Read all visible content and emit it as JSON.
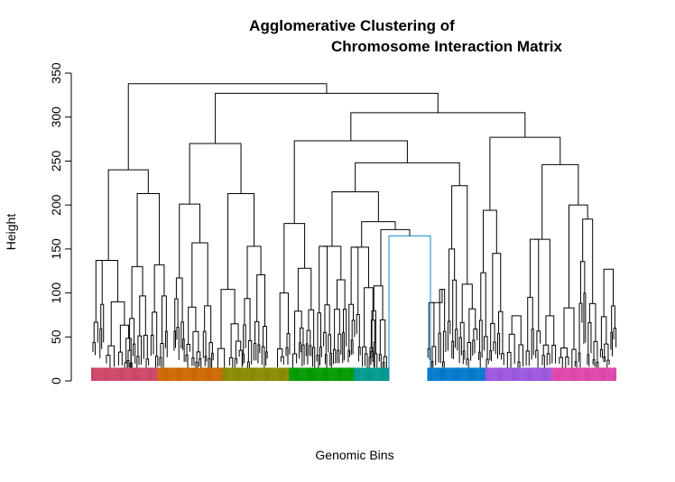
{
  "chart_data": {
    "type": "dendrogram",
    "title_line1": "Agglomerative Clustering of",
    "title_line2": "Chromosome Interaction Matrix",
    "xlabel": "Genomic Bins",
    "ylabel": "Height",
    "ylim": [
      0,
      350
    ],
    "yticks": [
      0,
      50,
      100,
      150,
      200,
      250,
      300,
      350
    ],
    "ytick_labels": [
      "0",
      "50",
      "100",
      "150",
      "200",
      "250",
      "300",
      "350"
    ],
    "leaf_count": 300,
    "leaf_base_height": 15,
    "leaf_colors": [
      "#cc4466",
      "#cc6600",
      "#888800",
      "#009900",
      "#00998e",
      "#0077cc",
      "#9955dd",
      "#dd44aa"
    ],
    "highlighted_branch_color": "#1188cc",
    "merges": [
      {
        "height": 338,
        "left": "A",
        "right": "B"
      },
      {
        "height": 240,
        "cluster": "A",
        "left": "A1",
        "right": "A2"
      },
      {
        "height": 327,
        "cluster": "B",
        "left": "B1",
        "right": "B2"
      },
      {
        "height": 270,
        "cluster": "B1",
        "left": "B1a",
        "right": "B1b"
      },
      {
        "height": 305,
        "cluster": "B2",
        "left": "B2a",
        "right": "B2b"
      },
      {
        "height": 273,
        "cluster": "B2a",
        "left": "C1",
        "right": "C2"
      },
      {
        "height": 248,
        "cluster": "C2",
        "left": "D1",
        "right": "D2"
      },
      {
        "height": 215,
        "cluster": "D1",
        "left": "E1",
        "right": "E2"
      },
      {
        "height": 181,
        "cluster": "E2",
        "left": "F1",
        "right": "F2"
      },
      {
        "height": 172,
        "cluster": "F2",
        "left": "G1",
        "right": "G2"
      },
      {
        "height": 165,
        "cluster": "G2",
        "left": "H1",
        "right": "H2"
      },
      {
        "height": 277,
        "cluster": "B2b",
        "left": "I1",
        "right": "I2"
      },
      {
        "height": 246,
        "cluster": "I2",
        "left": "J1",
        "right": "J2"
      }
    ]
  }
}
